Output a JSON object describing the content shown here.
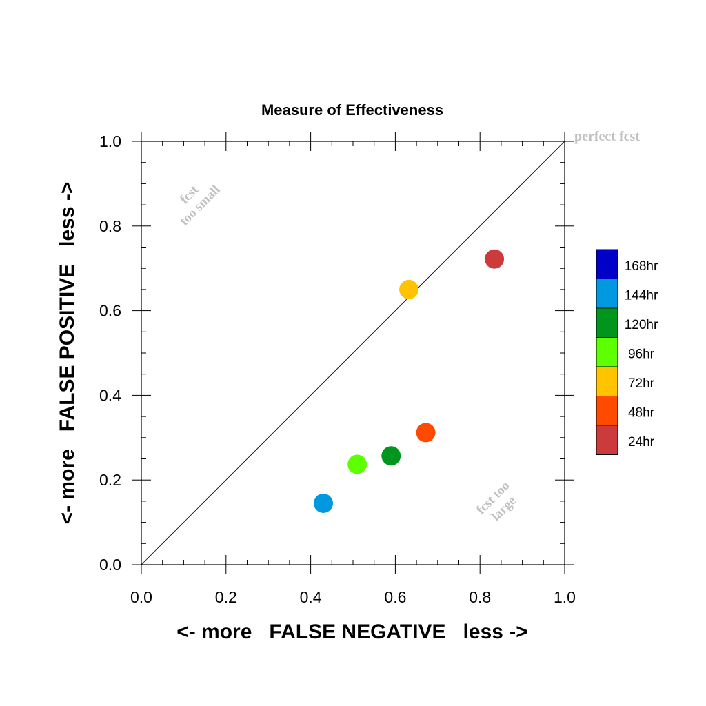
{
  "chart_data": {
    "type": "scatter",
    "title": "Measure of Effectiveness",
    "xlabel": "<- more   FALSE NEGATIVE   less ->",
    "ylabel": "<- more   FALSE POSITIVE   less ->",
    "xlim": [
      0.0,
      1.0
    ],
    "ylim": [
      0.0,
      1.0
    ],
    "x_ticks": [
      "0.0",
      "0.2",
      "0.4",
      "0.6",
      "0.8",
      "1.0"
    ],
    "y_ticks": [
      "0.0",
      "0.2",
      "0.4",
      "0.6",
      "0.8",
      "1.0"
    ],
    "grid": false,
    "diagonal_line": true,
    "annotations": {
      "perfect": "perfect fcst",
      "too_small": [
        "fcst",
        "too small"
      ],
      "too_large": [
        "fcst too",
        "large"
      ]
    },
    "points": [
      {
        "label": "144hr",
        "x": 0.43,
        "y": 0.145,
        "color": "#0099e0"
      },
      {
        "label": "96hr",
        "x": 0.51,
        "y": 0.237,
        "color": "#5eff00"
      },
      {
        "label": "120hr",
        "x": 0.59,
        "y": 0.257,
        "color": "#00961e"
      },
      {
        "label": "72hr",
        "x": 0.632,
        "y": 0.65,
        "color": "#ffc300"
      },
      {
        "label": "48hr",
        "x": 0.672,
        "y": 0.312,
        "color": "#ff4a00"
      },
      {
        "label": "24hr",
        "x": 0.834,
        "y": 0.722,
        "color": "#cc3a3c"
      }
    ],
    "legend": {
      "placement": "right",
      "entries": [
        {
          "label": "168hr",
          "color": "#0000c8"
        },
        {
          "label": "144hr",
          "color": "#0099e0"
        },
        {
          "label": "120hr",
          "color": "#00961e"
        },
        {
          "label": "96hr",
          "color": "#5eff00"
        },
        {
          "label": "72hr",
          "color": "#ffc300"
        },
        {
          "label": "48hr",
          "color": "#ff4a00"
        },
        {
          "label": "24hr",
          "color": "#cc3a3c"
        }
      ]
    }
  }
}
